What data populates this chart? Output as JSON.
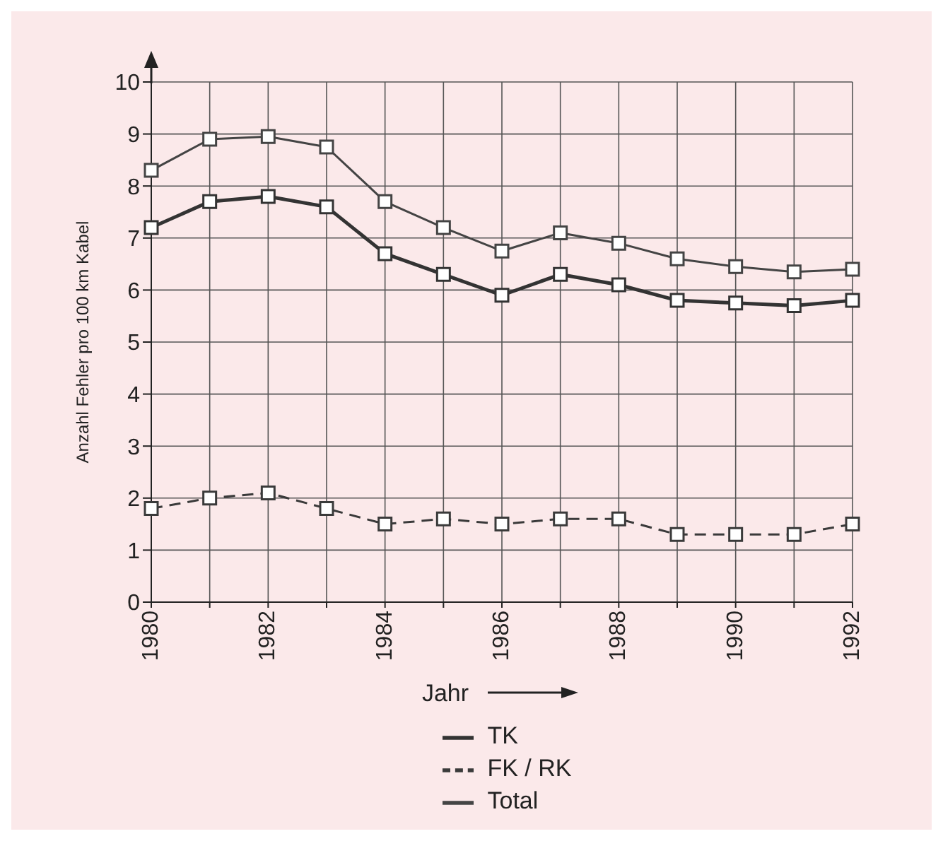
{
  "chart_data": {
    "type": "line",
    "xlabel": "Jahr",
    "ylabel": "Anzahl Fehler pro 100 km Kabel",
    "x": [
      1980,
      1981,
      1982,
      1983,
      1984,
      1985,
      1986,
      1987,
      1988,
      1989,
      1990,
      1991,
      1992
    ],
    "series": [
      {
        "name": "TK",
        "color": "#333333",
        "line_style": "solid",
        "values": [
          7.2,
          7.7,
          7.8,
          7.6,
          6.7,
          6.3,
          5.9,
          6.3,
          6.1,
          5.8,
          5.75,
          5.7,
          5.8
        ]
      },
      {
        "name": "FK / RK",
        "color": "#3a3a3a",
        "line_style": "dashed",
        "values": [
          1.8,
          2.0,
          2.1,
          1.8,
          1.5,
          1.6,
          1.5,
          1.6,
          1.6,
          1.3,
          1.3,
          1.3,
          1.5
        ]
      },
      {
        "name": "Total",
        "color": "#444444",
        "line_style": "solid",
        "values": [
          8.3,
          8.9,
          8.95,
          8.75,
          7.7,
          7.2,
          6.75,
          7.1,
          6.9,
          6.6,
          6.45,
          6.35,
          6.4
        ]
      }
    ],
    "xlim": [
      1980,
      1992
    ],
    "xticks": [
      1980,
      {
        "value": 1981,
        "label": null
      },
      1982,
      {
        "value": 1983,
        "label": null
      },
      1984,
      {
        "value": 1985,
        "label": null
      },
      1986,
      {
        "value": 1987,
        "label": null
      },
      1988,
      {
        "value": 1989,
        "label": null
      },
      1990,
      {
        "value": 1991,
        "label": null
      },
      1992
    ],
    "ylim": [
      0,
      10
    ],
    "yticks": [
      0,
      1,
      2,
      3,
      4,
      5,
      6,
      7,
      8,
      9,
      10
    ],
    "grid": true,
    "legend": "bottom",
    "marker": "square"
  }
}
